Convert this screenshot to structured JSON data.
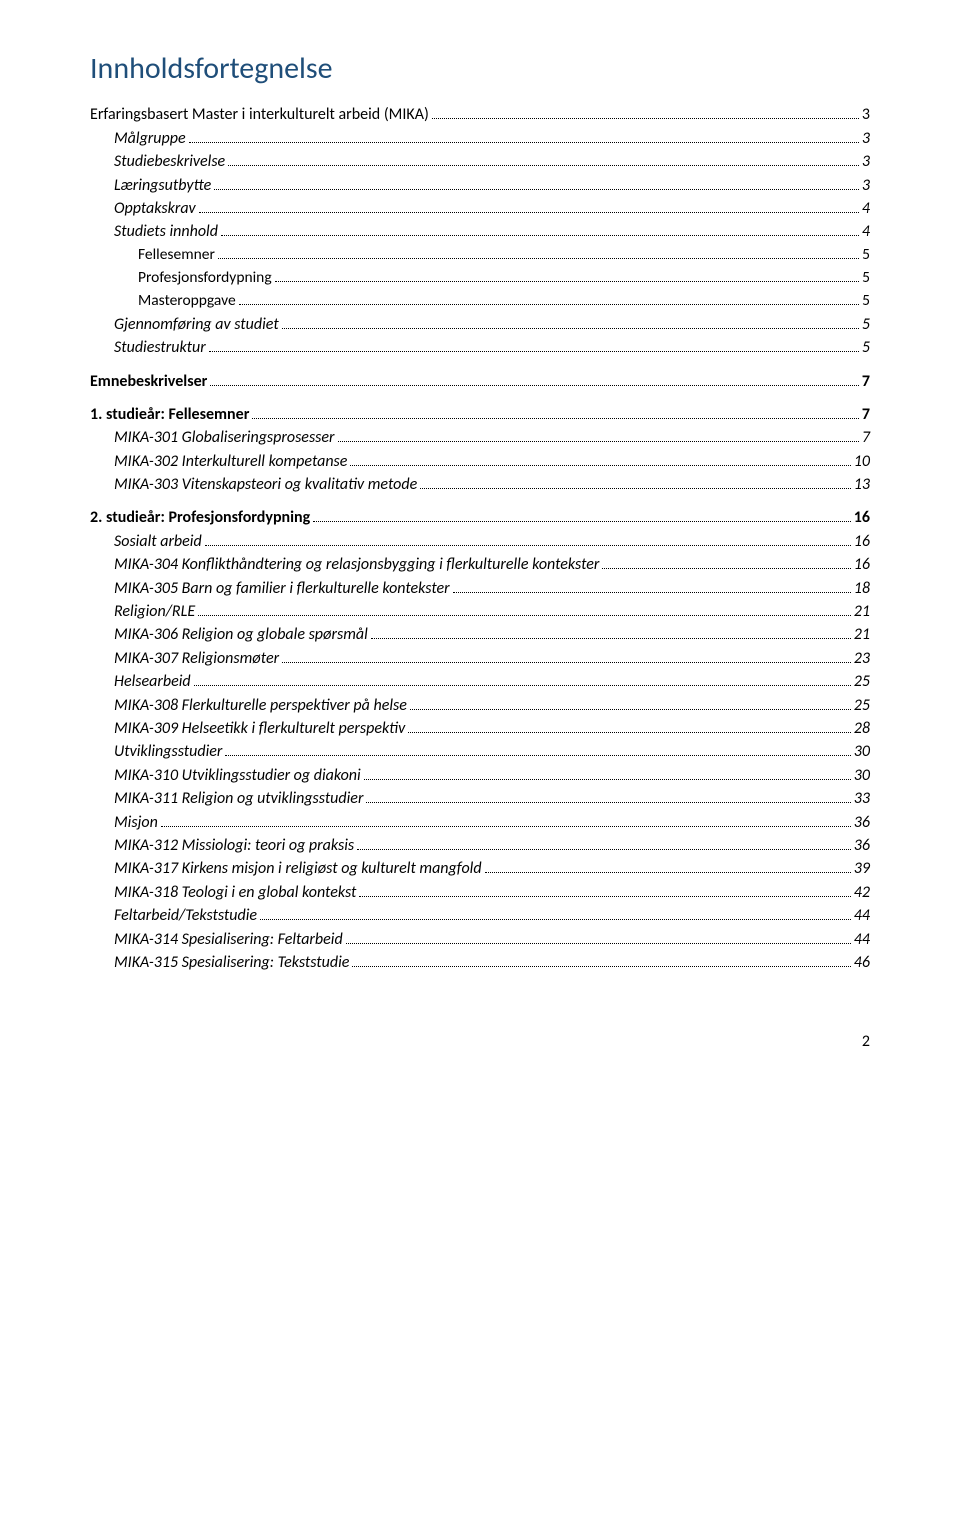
{
  "title": "Innholdsfortegnelse",
  "page_number": "2",
  "colors": {
    "title": "#1f4e79",
    "text": "#000000",
    "background": "#ffffff"
  },
  "typography": {
    "title_fontsize_pt": 22,
    "body_fontsize_pt": 12,
    "font_family": "Calibri"
  },
  "entries": [
    {
      "label": "Erfaringsbasert Master i interkulturelt arbeid (MIKA)",
      "page": "3",
      "cls": "lvl0-plain"
    },
    {
      "label": "Målgruppe",
      "page": "3",
      "cls": "lvl1"
    },
    {
      "label": "Studiebeskrivelse",
      "page": "3",
      "cls": "lvl1"
    },
    {
      "label": "Læringsutbytte",
      "page": "3",
      "cls": "lvl1"
    },
    {
      "label": "Opptakskrav",
      "page": "4",
      "cls": "lvl1"
    },
    {
      "label": "Studiets innhold",
      "page": "4",
      "cls": "lvl1"
    },
    {
      "label": "Fellesemner",
      "page": "5",
      "cls": "lvl2"
    },
    {
      "label": "Profesjonsfordypning",
      "page": "5",
      "cls": "lvl2"
    },
    {
      "label": "Masteroppgave",
      "page": "5",
      "cls": "lvl2"
    },
    {
      "label": "Gjennomføring av studiet",
      "page": "5",
      "cls": "lvl1"
    },
    {
      "label": "Studiestruktur",
      "page": "5",
      "cls": "lvl1"
    },
    {
      "label": "Emnebeskrivelser",
      "page": "7",
      "cls": "lvl0-bold"
    },
    {
      "label": "1. studieår: Fellesemner",
      "page": "7",
      "cls": "lvl0-bold"
    },
    {
      "label": "MIKA-301 Globaliseringsprosesser",
      "page": "7",
      "cls": "lvl1"
    },
    {
      "label": "MIKA-302 Interkulturell kompetanse",
      "page": "10",
      "cls": "lvl1"
    },
    {
      "label": "MIKA-303 Vitenskapsteori og kvalitativ metode",
      "page": "13",
      "cls": "lvl1"
    },
    {
      "label": "2. studieår: Profesjonsfordypning",
      "page": "16",
      "cls": "lvl0-bold"
    },
    {
      "label": "Sosialt arbeid",
      "page": "16",
      "cls": "lvl1"
    },
    {
      "label": "MIKA-304 Konflikthåndtering og relasjonsbygging i flerkulturelle kontekster",
      "page": "16",
      "cls": "lvl1"
    },
    {
      "label": "MIKA-305 Barn og familier i flerkulturelle kontekster",
      "page": "18",
      "cls": "lvl1"
    },
    {
      "label": "Religion/RLE",
      "page": "21",
      "cls": "lvl1"
    },
    {
      "label": "MIKA-306 Religion og globale spørsmål",
      "page": "21",
      "cls": "lvl1"
    },
    {
      "label": "MIKA-307 Religionsmøter",
      "page": "23",
      "cls": "lvl1"
    },
    {
      "label": "Helsearbeid",
      "page": "25",
      "cls": "lvl1"
    },
    {
      "label": "MIKA-308 Flerkulturelle perspektiver på helse",
      "page": "25",
      "cls": "lvl1"
    },
    {
      "label": "MIKA-309 Helseetikk i flerkulturelt perspektiv",
      "page": "28",
      "cls": "lvl1"
    },
    {
      "label": "Utviklingsstudier",
      "page": "30",
      "cls": "lvl1"
    },
    {
      "label": "MIKA-310 Utviklingsstudier og diakoni",
      "page": "30",
      "cls": "lvl1"
    },
    {
      "label": "MIKA-311 Religion og utviklingsstudier",
      "page": "33",
      "cls": "lvl1"
    },
    {
      "label": "Misjon",
      "page": "36",
      "cls": "lvl1"
    },
    {
      "label": "MIKA-312 Missiologi: teori og praksis",
      "page": "36",
      "cls": "lvl1"
    },
    {
      "label": "MIKA-317 Kirkens misjon i religiøst og kulturelt mangfold",
      "page": "39",
      "cls": "lvl1"
    },
    {
      "label": "MIKA-318 Teologi i en global kontekst",
      "page": "42",
      "cls": "lvl1"
    },
    {
      "label": "Feltarbeid/Tekststudie",
      "page": "44",
      "cls": "lvl1"
    },
    {
      "label": "MIKA-314 Spesialisering: Feltarbeid",
      "page": "44",
      "cls": "lvl1"
    },
    {
      "label": "MIKA-315 Spesialisering: Tekststudie",
      "page": "46",
      "cls": "lvl1"
    }
  ]
}
